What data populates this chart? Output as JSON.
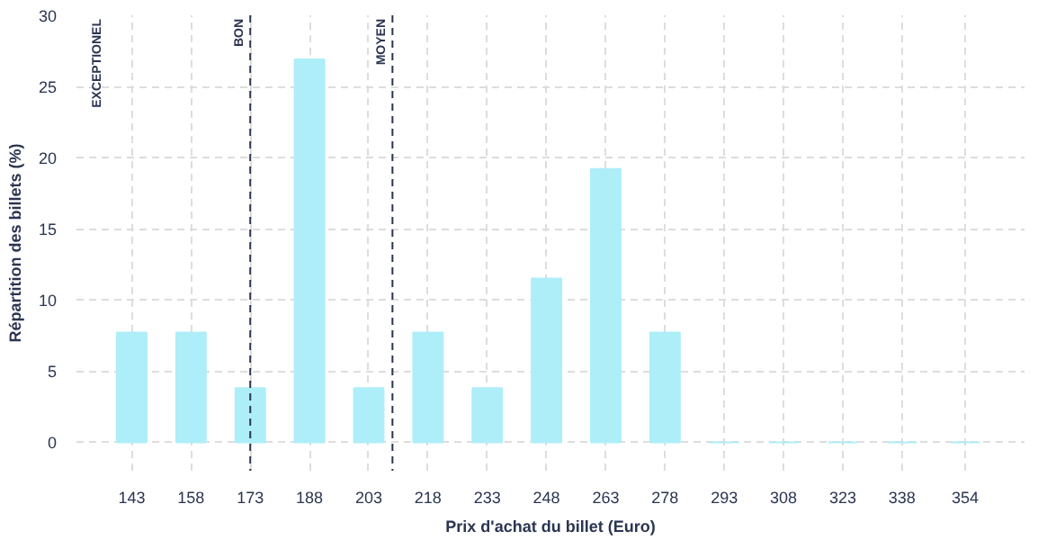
{
  "chart_data": {
    "type": "bar",
    "xlabel": "Prix d'achat du billet (Euro)",
    "ylabel": "Répartition des billets (%)",
    "x": [
      143,
      158,
      173,
      188,
      203,
      218,
      233,
      248,
      263,
      278,
      293,
      308,
      323,
      338,
      354
    ],
    "values": [
      7.7,
      7.7,
      3.8,
      26.9,
      3.8,
      7.7,
      3.8,
      11.5,
      19.2,
      7.7,
      0,
      0,
      0,
      0,
      0
    ],
    "color": "#aeeef8",
    "xlim": [
      129,
      369
    ],
    "xticks": [
      143,
      158,
      173,
      188,
      203,
      218,
      233,
      248,
      263,
      278,
      293,
      308,
      323,
      338,
      354
    ],
    "ylim": [
      -2,
      30
    ],
    "yticks": [
      0,
      5,
      10,
      15,
      20,
      25,
      30
    ],
    "grid": true,
    "ref_lines": [
      {
        "axis": "x",
        "value": 173,
        "label": "BON",
        "color": "#2a3550",
        "line_style": "dashed"
      },
      {
        "axis": "x",
        "value": 209,
        "label": "MOYEN",
        "color": "#2a3550",
        "line_style": "dashed"
      }
    ],
    "annotations": [
      "EXCEPTIONEL"
    ]
  }
}
